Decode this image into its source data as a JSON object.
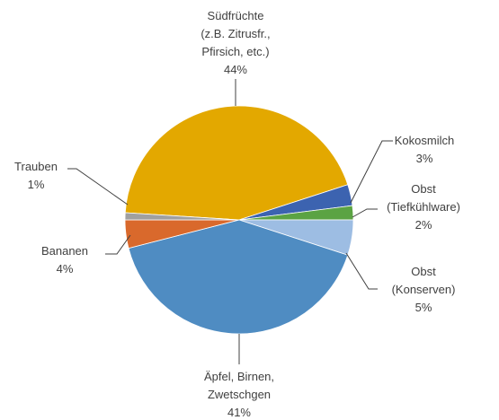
{
  "chart_data": {
    "type": "pie",
    "categories": [
      "Südfrüchte\n(z.B. Zitrusfr.,\nPfirsich, etc.)",
      "Kokosmilch",
      "Obst\n(Tiefkühlware)",
      "Obst\n(Konserven)",
      "Äpfel, Birnen,\nZwetschgen",
      "Bananen",
      "Trauben"
    ],
    "values": [
      44,
      3,
      2,
      5,
      41,
      4,
      1
    ],
    "value_labels": [
      "44%",
      "3%",
      "2%",
      "5%",
      "41%",
      "4%",
      "1%"
    ],
    "colors": [
      "#e3a800",
      "#3c63b0",
      "#5ba343",
      "#9dbde3",
      "#4f8cc2",
      "#d9692c",
      "#a0a0a0"
    ]
  }
}
